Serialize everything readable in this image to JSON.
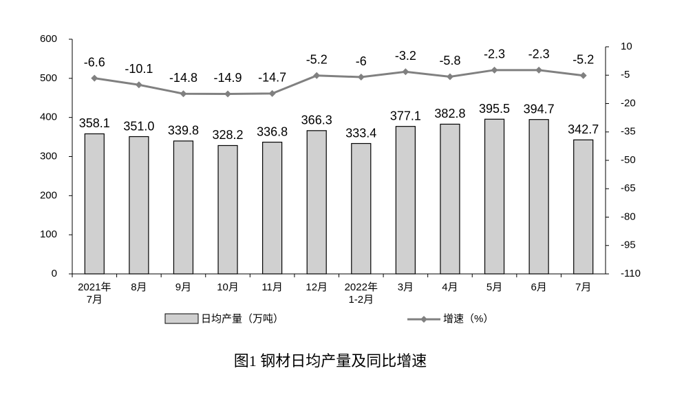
{
  "chart_data": {
    "type": "bar",
    "title": "图1  钢材日均产量及同比增速",
    "categories": [
      "2021年\n7月",
      "8月",
      "9月",
      "10月",
      "11月",
      "12月",
      "2022年\n1-2月",
      "3月",
      "4月",
      "5月",
      "6月",
      "7月"
    ],
    "series": [
      {
        "name": "日均产量（万吨）",
        "color": "#d0d0d0",
        "values": [
          358.1,
          351.0,
          339.8,
          328.2,
          336.8,
          366.3,
          333.4,
          377.1,
          382.8,
          395.5,
          394.7,
          342.7
        ],
        "value_labels": [
          "358.1",
          "351.0",
          "339.8",
          "328.2",
          "336.8",
          "366.3",
          "333.4",
          "377.1",
          "382.8",
          "395.5",
          "394.7",
          "342.7"
        ]
      },
      {
        "name": "增速（%）",
        "type": "line",
        "axis": "y2",
        "color": "#808080",
        "values": [
          -6.6,
          -10.1,
          -14.8,
          -14.9,
          -14.7,
          -5.2,
          -6.0,
          -3.2,
          -5.8,
          -2.3,
          -2.3,
          -5.2
        ]
      }
    ],
    "ylim": [
      0,
      600
    ],
    "yticks": [
      0,
      100,
      200,
      300,
      400,
      500,
      600
    ],
    "y2lim": [
      -110,
      10
    ],
    "y2ticks": [
      -110,
      -95,
      -80,
      -65,
      -50,
      -35,
      -20,
      -5,
      10
    ],
    "legend": "bottom",
    "grid": false
  }
}
